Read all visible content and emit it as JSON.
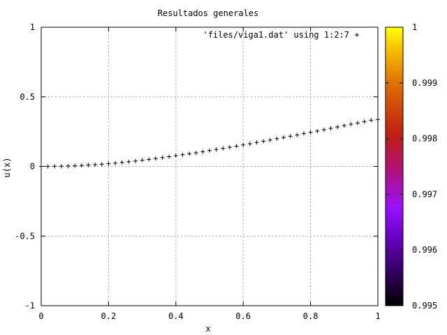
{
  "chart_data": {
    "type": "scatter",
    "title": "Resultados generales",
    "xlabel": "x",
    "ylabel": "u(x)",
    "xlim": [
      0,
      1
    ],
    "ylim": [
      -1,
      1
    ],
    "x_ticks": [
      "0",
      "0.2",
      "0.4",
      "0.6",
      "0.8",
      "1"
    ],
    "y_ticks": [
      "1",
      "0.5",
      "0",
      "-0.5",
      "-1"
    ],
    "grid": true,
    "legend": "top-right",
    "marker": "+",
    "series": [
      {
        "name": "'files/viga1.dat' using 1:2:7",
        "x": [
          0.0,
          0.02,
          0.04,
          0.06,
          0.08,
          0.1,
          0.12,
          0.14,
          0.16,
          0.18,
          0.2,
          0.22,
          0.24,
          0.26,
          0.28,
          0.3,
          0.32,
          0.34,
          0.36,
          0.38,
          0.4,
          0.42,
          0.44,
          0.46,
          0.48,
          0.5,
          0.52,
          0.54,
          0.56,
          0.58,
          0.6,
          0.62,
          0.64,
          0.66,
          0.68,
          0.7,
          0.72,
          0.74,
          0.76,
          0.78,
          0.8,
          0.82,
          0.84,
          0.86,
          0.88,
          0.9,
          0.92,
          0.94,
          0.96,
          0.98,
          1.0
        ],
        "y": [
          0.0,
          0.0,
          0.001,
          0.002,
          0.003,
          0.005,
          0.007,
          0.01,
          0.013,
          0.016,
          0.02,
          0.024,
          0.029,
          0.034,
          0.039,
          0.045,
          0.051,
          0.057,
          0.063,
          0.07,
          0.077,
          0.084,
          0.091,
          0.098,
          0.106,
          0.114,
          0.122,
          0.13,
          0.138,
          0.146,
          0.155,
          0.163,
          0.172,
          0.181,
          0.19,
          0.199,
          0.208,
          0.217,
          0.226,
          0.236,
          0.245,
          0.254,
          0.264,
          0.274,
          0.283,
          0.293,
          0.303,
          0.312,
          0.322,
          0.332,
          0.338
        ]
      }
    ],
    "colorbar": {
      "ticks": [
        "1",
        "0.999",
        "0.998",
        "0.997",
        "0.996",
        "0.995"
      ],
      "range": [
        0.995,
        1
      ]
    }
  }
}
